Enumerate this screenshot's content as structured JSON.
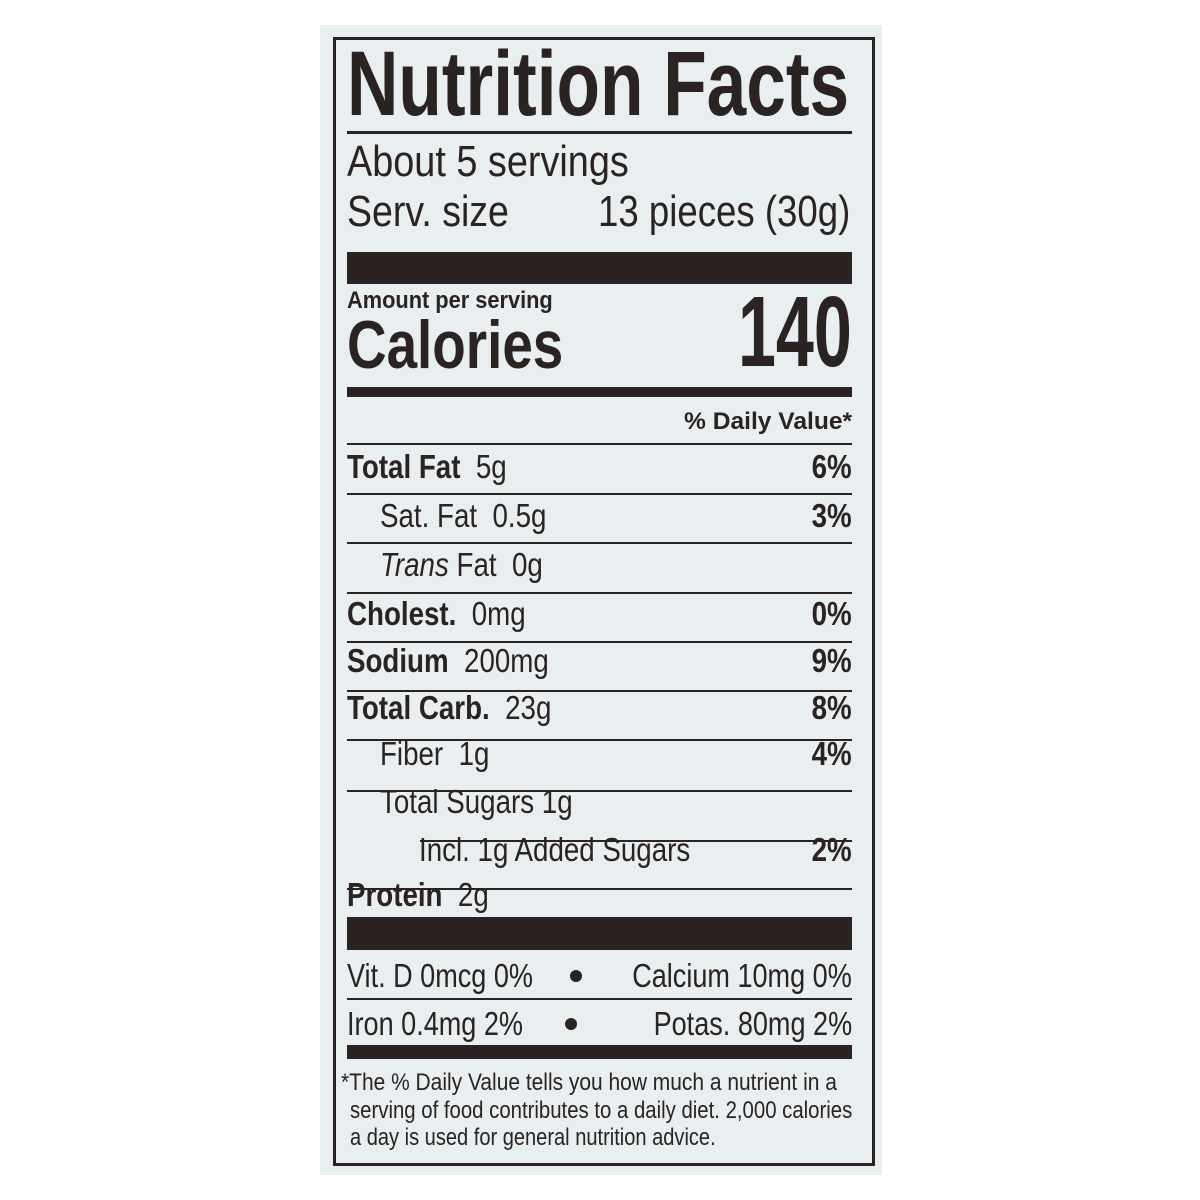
{
  "label": {
    "title": "Nutrition Facts",
    "servings": "About 5 servings",
    "serving_size_label": "Serv. size",
    "serving_size_value": "13 pieces (30g)",
    "amount_per_serving": "Amount per serving",
    "calories_label": "Calories",
    "calories_value": "140",
    "daily_value_header": "% Daily Value*",
    "nutrients": [
      {
        "name": "Total Fat",
        "amount": "5g",
        "dv": "6%"
      },
      {
        "name": "Sat. Fat",
        "amount": "0.5g",
        "dv": "3%"
      },
      {
        "name": "Trans",
        "name_rest": "Fat",
        "amount": "0g",
        "dv": ""
      },
      {
        "name": "Cholest.",
        "amount": "0mg",
        "dv": "0%"
      },
      {
        "name": "Sodium",
        "amount": "200mg",
        "dv": "9%"
      },
      {
        "name": "Total Carb.",
        "amount": "23g",
        "dv": "8%"
      },
      {
        "name": "Fiber",
        "amount": "1g",
        "dv": "4%"
      },
      {
        "name": "Total Sugars",
        "amount": "1g",
        "dv": ""
      },
      {
        "name": "Incl. 1g Added Sugars",
        "amount": "",
        "dv": "2%"
      },
      {
        "name": "Protein",
        "amount": "2g",
        "dv": ""
      }
    ],
    "vitamins": [
      {
        "left": "Vit. D  0mcg  0%",
        "right": "Calcium 10mg  0%"
      },
      {
        "left": "Iron  0.4mg  2%",
        "right": "Potas. 80mg  2%"
      }
    ],
    "footnote": [
      "*The % Daily Value tells you how much a nutrient in a",
      "serving of food contributes to a daily diet. 2,000 calories",
      "a day is used for general nutrition advice."
    ]
  },
  "colors": {
    "ink": "#2a2322",
    "panel": "#e9eef0",
    "background": "#ffffff"
  }
}
